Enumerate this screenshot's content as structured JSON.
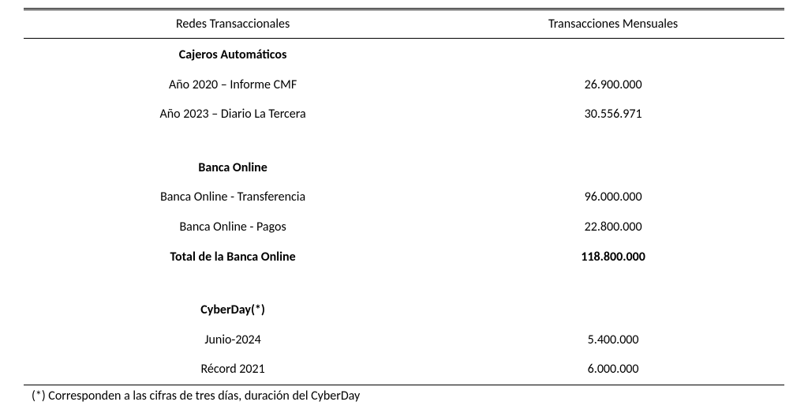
{
  "table": {
    "headers": {
      "col1": "Redes Transaccionales",
      "col2": "Transacciones Mensuales"
    },
    "sections": {
      "atm": {
        "title": "Cajeros Automáticos",
        "rows": {
          "r1": {
            "label": "Año 2020 – Informe CMF",
            "value": "26.900.000"
          },
          "r2": {
            "label": "Año 2023 – Diario La Tercera",
            "value": "30.556.971"
          }
        }
      },
      "online": {
        "title": "Banca Online",
        "rows": {
          "r1": {
            "label": "Banca Online - Transferencia",
            "value": "96.000.000"
          },
          "r2": {
            "label": "Banca Online - Pagos",
            "value": "22.800.000"
          }
        },
        "total": {
          "label": "Total de la Banca Online",
          "value": "118.800.000"
        }
      },
      "cyberday": {
        "title": "CyberDay(*)",
        "rows": {
          "r1": {
            "label": "Junio-2024",
            "value": "5.400.000"
          },
          "r2": {
            "label": "Récord 2021",
            "value": "6.000.000"
          }
        }
      }
    }
  },
  "footnote": "(*) Corresponden a las cifras de tres días, duración del CyberDay"
}
